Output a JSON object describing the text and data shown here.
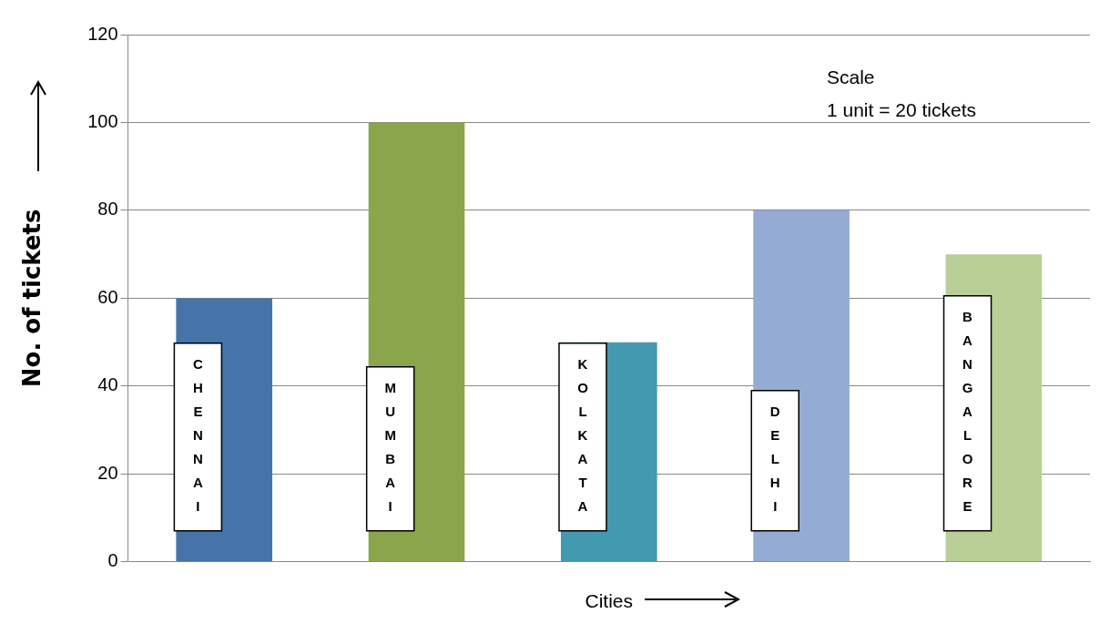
{
  "chart_data": {
    "type": "bar",
    "xlabel": "Cities",
    "ylabel": "No. of tickets",
    "categories": [
      "CHENNAI",
      "MUMBAI",
      "KOLKATA",
      "DELHI",
      "BANGALORE"
    ],
    "values": [
      60,
      100,
      50,
      80,
      70
    ],
    "colors": [
      "#4674a8",
      "#8ba54b",
      "#4299b0",
      "#94abd3",
      "#b9cf95"
    ],
    "ylim": [
      0,
      120
    ],
    "yticks": [
      0,
      20,
      40,
      60,
      80,
      100,
      120
    ],
    "grid": "y",
    "legend": false,
    "annotations": [
      "Scale",
      "1 unit = 20 tickets"
    ]
  }
}
